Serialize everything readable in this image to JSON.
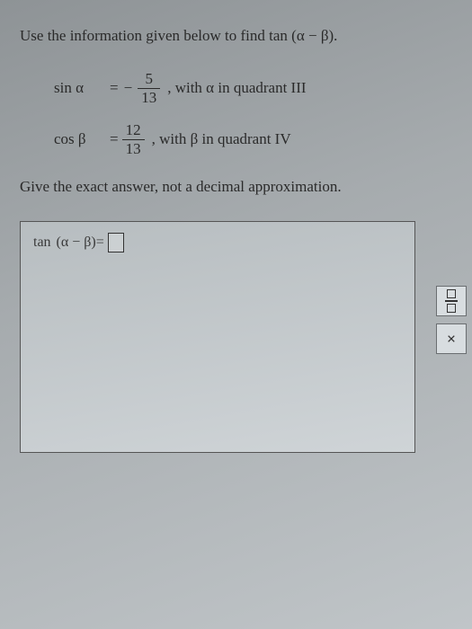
{
  "instruction": {
    "prefix": "Use the information given below to find ",
    "func": "tan",
    "expr": "(α − β)."
  },
  "given": [
    {
      "lhs": "sin α",
      "has_negative": true,
      "num": "5",
      "den": "13",
      "cond_prefix": ", with ",
      "cond_var": "α",
      "cond_suffix": " in quadrant III"
    },
    {
      "lhs": "cos β",
      "has_negative": false,
      "num": "12",
      "den": "13",
      "cond_prefix": ", with ",
      "cond_var": "β",
      "cond_suffix": " in quadrant IV"
    }
  ],
  "secondary_instruction": "Give the exact answer, not a decimal approximation.",
  "answer": {
    "func": "tan",
    "expr": "(α − β)",
    "eq": " = "
  },
  "toolbox": {
    "frac_title": "fraction",
    "x_label": "×"
  },
  "colors": {
    "text": "#2a2a2a",
    "border": "#555555",
    "bg_top": "#8e9396",
    "bg_bottom": "#c0c5c8"
  }
}
